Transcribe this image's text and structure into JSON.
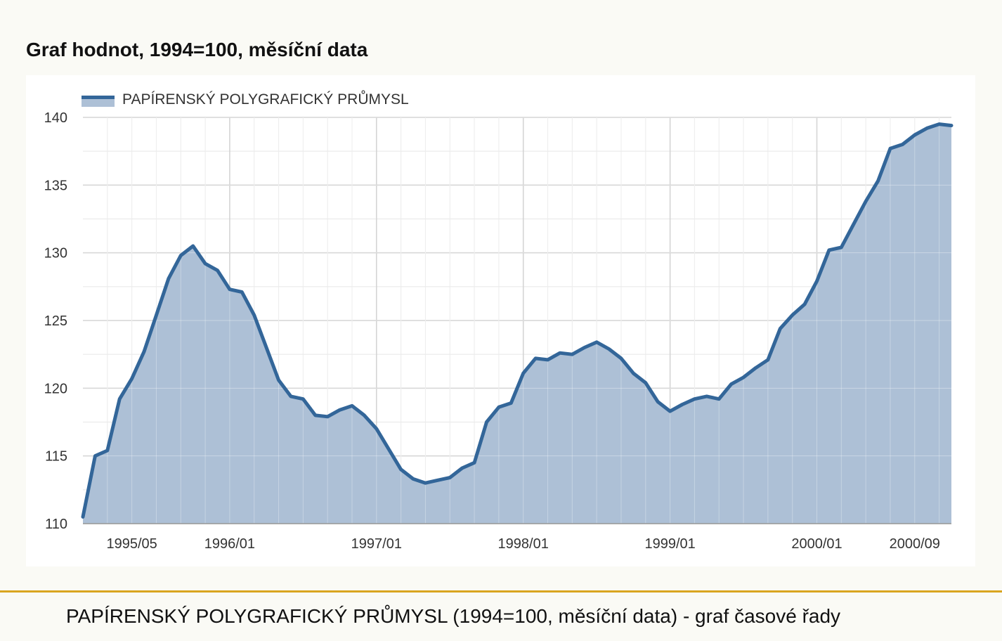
{
  "page": {
    "title": "Graf hodnot, 1994=100, měsíční data",
    "caption": "PAPÍRENSKÝ POLYGRAFICKÝ PRŮMYSL (1994=100, měsíční data) - graf časové řady"
  },
  "colors": {
    "line": "#336699",
    "area": "#adc0d6",
    "grid_major": "#c8c8c8",
    "grid_minor": "#e6e6e6",
    "divider": "#d9a520"
  },
  "chart_data": {
    "type": "area",
    "title": "Graf hodnot, 1994=100, měsíční data",
    "xlabel": "",
    "ylabel": "",
    "ylim": [
      110,
      140
    ],
    "yticks": [
      110,
      115,
      120,
      125,
      130,
      135,
      140
    ],
    "grid": true,
    "legend_position": "top-left",
    "x_start": "1995/01",
    "x_end": "2000/12",
    "xtick_labels": [
      "1995/05",
      "1996/01",
      "1997/01",
      "1998/01",
      "1999/01",
      "2000/01",
      "2000/09"
    ],
    "series": [
      {
        "name": "PAPÍRENSKÝ POLYGRAFICKÝ PRŮMYSL",
        "x": [
          "1995/01",
          "1995/02",
          "1995/03",
          "1995/04",
          "1995/05",
          "1995/06",
          "1995/07",
          "1995/08",
          "1995/09",
          "1995/10",
          "1995/11",
          "1995/12",
          "1996/01",
          "1996/02",
          "1996/03",
          "1996/04",
          "1996/05",
          "1996/06",
          "1996/07",
          "1996/08",
          "1996/09",
          "1996/10",
          "1996/11",
          "1996/12",
          "1997/01",
          "1997/02",
          "1997/03",
          "1997/04",
          "1997/05",
          "1997/06",
          "1997/07",
          "1997/08",
          "1997/09",
          "1997/10",
          "1997/11",
          "1997/12",
          "1998/01",
          "1998/02",
          "1998/03",
          "1998/04",
          "1998/05",
          "1998/06",
          "1998/07",
          "1998/08",
          "1998/09",
          "1998/10",
          "1998/11",
          "1998/12",
          "1999/01",
          "1999/02",
          "1999/03",
          "1999/04",
          "1999/05",
          "1999/06",
          "1999/07",
          "1999/08",
          "1999/09",
          "1999/10",
          "1999/11",
          "1999/12",
          "2000/01",
          "2000/02",
          "2000/03",
          "2000/04",
          "2000/05",
          "2000/06",
          "2000/07",
          "2000/08",
          "2000/09",
          "2000/10",
          "2000/11",
          "2000/12"
        ],
        "values": [
          110.5,
          115.0,
          115.4,
          119.2,
          120.7,
          122.7,
          125.4,
          128.1,
          129.8,
          130.5,
          129.2,
          128.7,
          127.3,
          127.1,
          125.4,
          123.0,
          120.6,
          119.4,
          119.2,
          118.0,
          117.9,
          118.4,
          118.7,
          118.0,
          117.0,
          115.5,
          114.0,
          113.3,
          113.0,
          113.2,
          113.4,
          114.1,
          114.5,
          117.5,
          118.6,
          118.9,
          121.1,
          122.2,
          122.1,
          122.6,
          122.5,
          123.0,
          123.4,
          122.9,
          122.2,
          121.1,
          120.4,
          119.0,
          118.3,
          118.8,
          119.2,
          119.4,
          119.2,
          120.3,
          120.8,
          121.5,
          122.1,
          124.4,
          125.4,
          126.2,
          127.9,
          130.2,
          130.4,
          132.1,
          133.8,
          135.3,
          137.7,
          138.0,
          138.7,
          139.2,
          139.5,
          139.4
        ]
      }
    ]
  }
}
